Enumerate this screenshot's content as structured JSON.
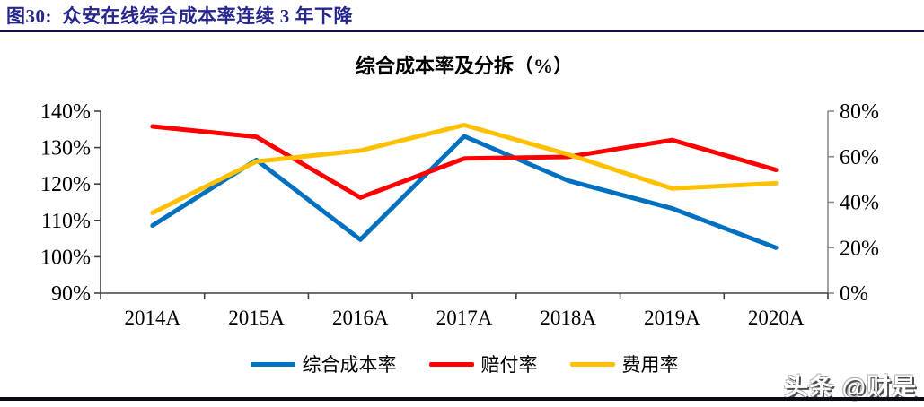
{
  "header": {
    "caption": "图30:  众安在线综合成本率连续 3 年下降"
  },
  "footer": {
    "watermark": "头条 @财是"
  },
  "colors": {
    "caption_text": "#26268C",
    "top_rule": "#10104A",
    "bottom_rule": "#0B0B18",
    "axis_dark": "#404040",
    "axis_right": "#8C8C8C",
    "tick_text": "#000000"
  },
  "chart_data": {
    "type": "line",
    "title": "综合成本率及分拆（%）",
    "categories": [
      "2014A",
      "2015A",
      "2016A",
      "2017A",
      "2018A",
      "2019A",
      "2020A"
    ],
    "series": [
      {
        "name": "综合成本率",
        "axis": "left",
        "color": "#0070C0",
        "values": [
          108.6,
          126.6,
          104.7,
          133.1,
          120.9,
          113.3,
          102.5
        ]
      },
      {
        "name": "赔付率",
        "axis": "right",
        "color": "#FF0000",
        "values": [
          73.3,
          68.7,
          42.0,
          59.2,
          59.9,
          67.3,
          54.2
        ]
      },
      {
        "name": "费用率",
        "axis": "right",
        "color": "#FFC000",
        "values": [
          35.3,
          57.9,
          62.7,
          73.9,
          61.0,
          46.0,
          48.3
        ]
      }
    ],
    "left_axis": {
      "min": 90,
      "max": 140,
      "step": 10,
      "tick_labels": [
        "140%",
        "130%",
        "120%",
        "110%",
        "100%",
        "90%"
      ]
    },
    "right_axis": {
      "min": 0,
      "max": 80,
      "step": 20,
      "tick_labels": [
        "80%",
        "60%",
        "40%",
        "20%",
        "0%"
      ]
    },
    "grid": false,
    "legend_position": "bottom",
    "line_width": 5
  }
}
